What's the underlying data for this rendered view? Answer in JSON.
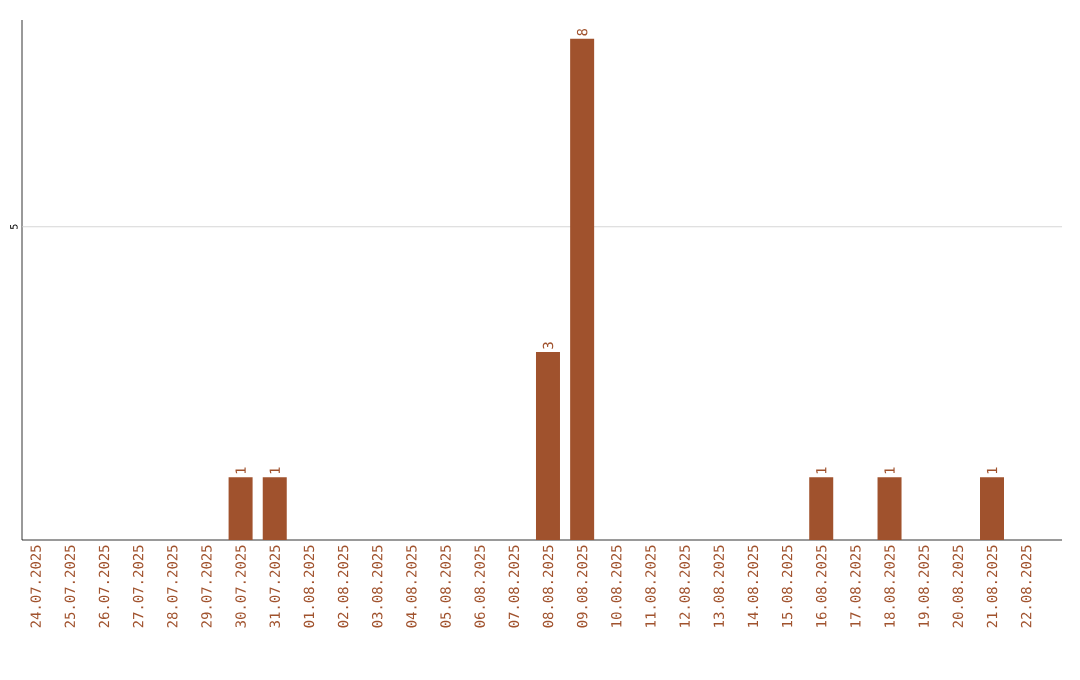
{
  "chart_data": {
    "type": "bar",
    "categories": [
      "24.07.2025",
      "25.07.2025",
      "26.07.2025",
      "27.07.2025",
      "28.07.2025",
      "29.07.2025",
      "30.07.2025",
      "31.07.2025",
      "01.08.2025",
      "02.08.2025",
      "03.08.2025",
      "04.08.2025",
      "05.08.2025",
      "06.08.2025",
      "07.08.2025",
      "08.08.2025",
      "09.08.2025",
      "10.08.2025",
      "11.08.2025",
      "12.08.2025",
      "13.08.2025",
      "14.08.2025",
      "15.08.2025",
      "16.08.2025",
      "17.08.2025",
      "18.08.2025",
      "19.08.2025",
      "20.08.2025",
      "21.08.2025",
      "22.08.2025"
    ],
    "values": [
      0,
      0,
      0,
      0,
      0,
      0,
      1,
      1,
      0,
      0,
      0,
      0,
      0,
      0,
      0,
      3,
      8,
      0,
      0,
      0,
      0,
      0,
      0,
      1,
      0,
      1,
      0,
      0,
      1,
      0
    ],
    "color": "#a0522d",
    "value_labels": [
      null,
      null,
      null,
      null,
      null,
      null,
      "1",
      "1",
      null,
      null,
      null,
      null,
      null,
      null,
      null,
      "3",
      "8",
      null,
      null,
      null,
      null,
      null,
      null,
      "1",
      null,
      "1",
      null,
      null,
      "1",
      null
    ],
    "ylim": [
      0,
      8.3
    ],
    "ref_lines": [
      {
        "axis": "y",
        "value": 5,
        "label": "5",
        "color": "#cccccc"
      }
    ]
  }
}
